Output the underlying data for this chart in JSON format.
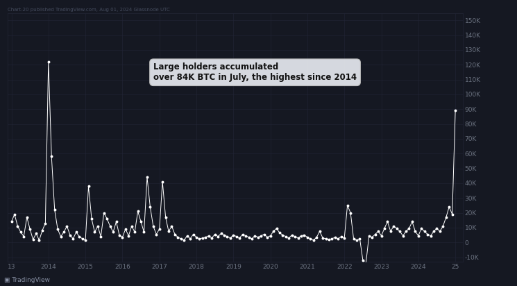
{
  "bg_color": "#151822",
  "line_color": "#ffffff",
  "grid_color": "#222536",
  "text_color": "#6b7280",
  "annotation_text": "Large holders accumulated\nover 84K BTC in July, the highest since 2014",
  "annotation_bg": "#dde0e6",
  "annotation_text_color": "#111111",
  "watermark": "Chart-20 published TradingView.com, Aug 01, 2024 Glassnode UTC",
  "tradingview_label": "TradingView",
  "ylim": [
    -13000,
    155000
  ],
  "yticks": [
    -10000,
    0,
    10000,
    20000,
    30000,
    40000,
    50000,
    60000,
    70000,
    80000,
    90000,
    100000,
    110000,
    120000,
    130000,
    140000,
    150000
  ],
  "ytick_labels": [
    "-10K",
    "0",
    "10K",
    "20K",
    "30K",
    "40K",
    "50K",
    "60K",
    "70K",
    "80K",
    "90K",
    "100K",
    "110K",
    "120K",
    "130K",
    "140K",
    "150K"
  ],
  "xlabel_years": [
    "13",
    "2014",
    "2015",
    "2016",
    "2017",
    "2018",
    "2019",
    "2020",
    "2021",
    "2022",
    "2023",
    "2024",
    "25"
  ],
  "data_x": [
    0.0,
    0.083,
    0.167,
    0.25,
    0.333,
    0.417,
    0.5,
    0.583,
    0.667,
    0.75,
    0.833,
    0.917,
    1.0,
    1.083,
    1.167,
    1.25,
    1.333,
    1.417,
    1.5,
    1.583,
    1.667,
    1.75,
    1.833,
    1.917,
    2.0,
    2.083,
    2.167,
    2.25,
    2.333,
    2.417,
    2.5,
    2.583,
    2.667,
    2.75,
    2.833,
    2.917,
    3.0,
    3.083,
    3.167,
    3.25,
    3.333,
    3.417,
    3.5,
    3.583,
    3.667,
    3.75,
    3.833,
    3.917,
    4.0,
    4.083,
    4.167,
    4.25,
    4.333,
    4.417,
    4.5,
    4.583,
    4.667,
    4.75,
    4.833,
    4.917,
    5.0,
    5.083,
    5.167,
    5.25,
    5.333,
    5.417,
    5.5,
    5.583,
    5.667,
    5.75,
    5.833,
    5.917,
    6.0,
    6.083,
    6.167,
    6.25,
    6.333,
    6.417,
    6.5,
    6.583,
    6.667,
    6.75,
    6.833,
    6.917,
    7.0,
    7.083,
    7.167,
    7.25,
    7.333,
    7.417,
    7.5,
    7.583,
    7.667,
    7.75,
    7.833,
    7.917,
    8.0,
    8.083,
    8.167,
    8.25,
    8.333,
    8.417,
    8.5,
    8.583,
    8.667,
    8.75,
    8.833,
    8.917,
    9.0,
    9.083,
    9.167,
    9.25,
    9.333,
    9.417,
    9.5,
    9.583,
    9.667,
    9.75,
    9.833,
    9.917,
    10.0,
    10.083,
    10.167,
    10.25,
    10.333,
    10.417,
    10.5,
    10.583,
    10.667,
    10.75,
    10.833,
    10.917,
    11.0,
    11.083,
    11.167,
    11.25,
    11.333,
    11.417,
    11.5,
    11.583,
    11.667,
    11.75,
    11.833,
    11.917,
    12.0
  ],
  "data_y": [
    14000,
    19000,
    11000,
    7000,
    4000,
    17000,
    9000,
    2000,
    6000,
    1500,
    8000,
    13000,
    122000,
    58000,
    22000,
    9000,
    4000,
    7000,
    11000,
    5000,
    2500,
    7000,
    4000,
    2500,
    1500,
    38000,
    16000,
    7000,
    11000,
    4000,
    20000,
    16000,
    11000,
    7000,
    14000,
    5000,
    3500,
    9000,
    4500,
    11000,
    7000,
    21000,
    14000,
    7000,
    44000,
    24000,
    11000,
    5500,
    9000,
    41000,
    17000,
    7500,
    11000,
    5500,
    3500,
    2500,
    1500,
    4500,
    2500,
    5500,
    3500,
    2500,
    3000,
    3500,
    4500,
    3000,
    5500,
    4000,
    6000,
    5000,
    4000,
    3000,
    5000,
    4000,
    3000,
    5500,
    4500,
    3500,
    2500,
    4500,
    3500,
    4500,
    5500,
    3500,
    4500,
    7500,
    9500,
    6500,
    5000,
    4000,
    3000,
    5000,
    4000,
    3000,
    4500,
    5000,
    3500,
    2500,
    1500,
    3500,
    7500,
    3000,
    2500,
    2000,
    2500,
    3500,
    2500,
    4000,
    3000,
    25000,
    20000,
    2500,
    1500,
    2500,
    -12000,
    -14000,
    4500,
    3500,
    5500,
    7500,
    4500,
    9500,
    14000,
    7500,
    11000,
    9500,
    7500,
    4500,
    7500,
    9500,
    14000,
    7500,
    4500,
    9500,
    7500,
    5500,
    4500,
    7500,
    9500,
    7500,
    11000,
    17000,
    24000,
    19000,
    89000
  ]
}
